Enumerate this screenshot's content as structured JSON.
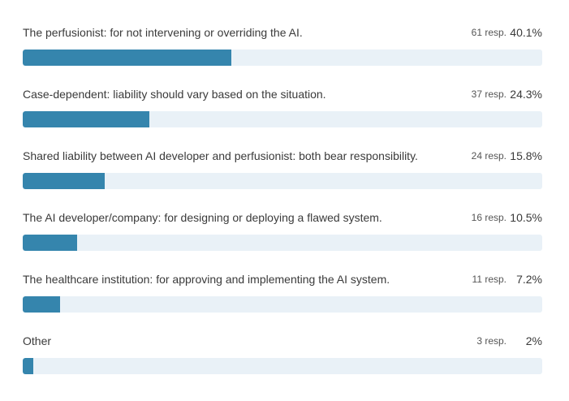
{
  "chart_data": {
    "type": "bar",
    "orientation": "horizontal",
    "categories": [
      "The perfusionist: for not intervening or overriding the AI.",
      "Case-dependent: liability should vary based on the situation.",
      "Shared liability between AI developer and perfusionist: both bear responsibility.",
      "The AI developer/company: for designing or deploying a flawed system.",
      "The healthcare institution: for approving and implementing the AI system.",
      "Other"
    ],
    "responses": [
      "61 resp.",
      "37 resp.",
      "24 resp.",
      "16 resp.",
      "11 resp.",
      "3 resp."
    ],
    "percent_labels": [
      "40.1%",
      "24.3%",
      "15.8%",
      "10.5%",
      "7.2%",
      "2%"
    ],
    "values": [
      40.1,
      24.3,
      15.8,
      10.5,
      7.2,
      2
    ],
    "xlim": [
      0,
      100
    ],
    "colors": {
      "bar": "#3585ad",
      "track": "#e9f1f7"
    }
  }
}
